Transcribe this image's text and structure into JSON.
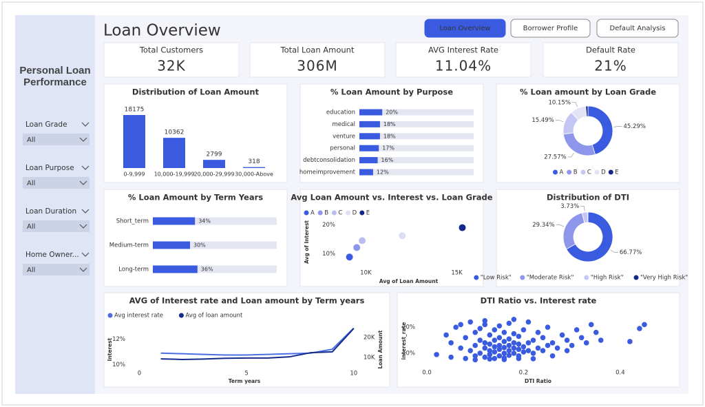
{
  "header": {
    "title": "Loan Overview",
    "tabs": [
      "Loan Overview",
      "Borrower Profile",
      "Default Analysis"
    ]
  },
  "sidebar": {
    "title": "Personal Loan Performance",
    "filters": [
      {
        "label": "Loan Grade",
        "value": "All"
      },
      {
        "label": "Loan Purpose",
        "value": "All"
      },
      {
        "label": "Loan Duration",
        "value": "All"
      },
      {
        "label": "Home Owner...",
        "value": "All"
      }
    ]
  },
  "kpis": [
    {
      "label": "Total Customers",
      "value": "32K"
    },
    {
      "label": "Total Loan Amount",
      "value": "306M"
    },
    {
      "label": "AVG Interest Rate",
      "value": "11.04%"
    },
    {
      "label": "Default Rate",
      "value": "21%"
    }
  ],
  "chart_data": [
    {
      "type": "bar",
      "title": "Distribution of Loan Amount",
      "categories": [
        "0-9,999",
        "10,000-19,999",
        "20,000-29,999",
        "30,000-Above"
      ],
      "values": [
        18175,
        10362,
        2799,
        318
      ],
      "color": "#3a5be0"
    },
    {
      "type": "barh",
      "title": "% Loan Amount by Purpose",
      "categories": [
        "education",
        "medical",
        "venture",
        "personal",
        "debtconsolidation",
        "homeimprovement"
      ],
      "values": [
        20,
        18,
        18,
        17,
        16,
        12
      ],
      "value_labels": [
        "20%",
        "18%",
        "18%",
        "17%",
        "16%",
        "12%"
      ],
      "xlim": [
        0,
        100
      ],
      "color": "#3a5be0"
    },
    {
      "type": "donut",
      "title": "% Loan amount by Loan Grade",
      "categories": [
        "A",
        "B",
        "C",
        "D",
        "E"
      ],
      "values": [
        45.29,
        27.57,
        15.49,
        10.15,
        1.5
      ],
      "value_labels": [
        "45.29%",
        "27.57%",
        "15.49%",
        "10.15%",
        null
      ],
      "colors": [
        "#3a5be0",
        "#8d96ea",
        "#c4c7f3",
        "#e2e3f5",
        "#14288a"
      ]
    },
    {
      "type": "barh",
      "title": "% Loan Amount by Term Years",
      "categories": [
        "Short_term",
        "Medium-term",
        "Long-term"
      ],
      "values": [
        34,
        30,
        36
      ],
      "value_labels": [
        "34%",
        "30%",
        "36%"
      ],
      "xlim": [
        0,
        100
      ],
      "color": "#3a5be0"
    },
    {
      "type": "scatter",
      "title": "Avg Loan Amount vs. Interest vs. Loan Grade",
      "xlabel": "Avg of Loan Amount",
      "ylabel": "Avg of Interest",
      "series": [
        {
          "name": "A",
          "color": "#3a5be0",
          "x": [
            9100
          ],
          "values": [
            8.8
          ]
        },
        {
          "name": "B",
          "color": "#8d96ea",
          "x": [
            9500
          ],
          "values": [
            12.1
          ]
        },
        {
          "name": "C",
          "color": "#b9bdf0",
          "x": [
            9800
          ],
          "values": [
            14.5
          ]
        },
        {
          "name": "D",
          "color": "#dcdef3",
          "x": [
            12000
          ],
          "values": [
            16.2
          ]
        },
        {
          "name": "E",
          "color": "#14288a",
          "x": [
            15300
          ],
          "values": [
            19
          ]
        }
      ],
      "xlim": [
        8700,
        16000
      ],
      "xticks": [
        {
          "value": 10000,
          "label": "10K"
        },
        {
          "value": 15000,
          "label": "15K"
        }
      ],
      "ylim": [
        6,
        22
      ],
      "yticks": [
        {
          "value": 10,
          "label": "10%"
        },
        {
          "value": 20,
          "label": "20%"
        }
      ]
    },
    {
      "type": "donut",
      "title": "Distribution of DTI",
      "categories": [
        "\"Low Risk\"",
        "\"Moderate Risk\"",
        "\"High Risk\"",
        "\"Very High Risk\""
      ],
      "values": [
        66.77,
        29.34,
        3.73,
        0.16
      ],
      "value_labels": [
        "66.77%",
        "29.34%",
        "3.73%",
        null
      ],
      "colors": [
        "#3a5be0",
        "#8d96ea",
        "#c4c7f3",
        "#14288a"
      ]
    },
    {
      "type": "line",
      "title": "AVG of Interest rate and Loan amount by Term years",
      "xlabel": "Term years",
      "ylabel": "Interest",
      "y2label": "Loan Amount",
      "x": [
        1,
        2,
        3,
        4,
        5,
        6,
        7,
        8,
        9,
        10
      ],
      "series": [
        {
          "name": "Avg interest rate",
          "color": "#4a6fe3",
          "values": [
            10.9,
            10.85,
            10.8,
            10.75,
            10.75,
            10.8,
            10.85,
            10.9,
            11.2,
            12.85
          ]
        },
        {
          "name": "Avg of loan amount",
          "color": "#142a8c",
          "axis": "y2",
          "values": [
            9300,
            9000,
            9200,
            9600,
            9700,
            9700,
            10300,
            12400,
            12800,
            24500
          ]
        }
      ],
      "xlim": [
        -0.4,
        10.2
      ],
      "xticks": [
        0,
        5,
        10
      ],
      "ylim": [
        9.7,
        13.2
      ],
      "yticks": [
        {
          "value": 10,
          "label": "10%"
        },
        {
          "value": 12,
          "label": "12%"
        }
      ],
      "y2lim": [
        4500,
        26900
      ],
      "y2ticks": [
        {
          "value": 10000,
          "label": "10K"
        },
        {
          "value": 20000,
          "label": "20K"
        }
      ]
    },
    {
      "type": "scatter",
      "title": "DTI Ratio vs. Interest rate",
      "xlabel": "DTI Ratio",
      "ylabel": "interest_rate",
      "color": "#3a5be0",
      "x": [
        0.02,
        0.04,
        0.05,
        0.06,
        0.07,
        0.08,
        0.08,
        0.09,
        0.09,
        0.1,
        0.1,
        0.1,
        0.11,
        0.11,
        0.11,
        0.12,
        0.12,
        0.12,
        0.12,
        0.13,
        0.13,
        0.13,
        0.13,
        0.14,
        0.14,
        0.14,
        0.14,
        0.14,
        0.15,
        0.15,
        0.15,
        0.15,
        0.15,
        0.16,
        0.16,
        0.16,
        0.16,
        0.16,
        0.17,
        0.17,
        0.17,
        0.17,
        0.17,
        0.18,
        0.18,
        0.18,
        0.18,
        0.19,
        0.19,
        0.19,
        0.19,
        0.2,
        0.2,
        0.2,
        0.21,
        0.21,
        0.21,
        0.22,
        0.22,
        0.23,
        0.23,
        0.24,
        0.24,
        0.25,
        0.25,
        0.26,
        0.27,
        0.28,
        0.29,
        0.3,
        0.31,
        0.32,
        0.33,
        0.34,
        0.35,
        0.36,
        0.05,
        0.07,
        0.1,
        0.13,
        0.16,
        0.19,
        0.22,
        0.26,
        0.42,
        0.45,
        0.44,
        0.29,
        0.12,
        0.18
      ],
      "values": [
        9.5,
        17,
        14,
        20,
        12,
        8,
        16,
        11,
        22,
        9,
        13,
        18,
        10,
        15,
        19.5,
        8.5,
        12,
        14,
        21,
        9.5,
        11,
        13.5,
        17,
        8,
        10.5,
        12.5,
        15,
        19,
        9,
        11.5,
        13,
        16,
        20.5,
        8.2,
        10,
        12.2,
        14.5,
        18,
        9.2,
        11,
        13,
        15.5,
        21.5,
        10,
        12,
        14,
        17.5,
        9,
        11.5,
        13.5,
        16.5,
        10.5,
        12.5,
        19,
        11,
        14,
        22,
        10,
        15,
        12,
        18,
        11,
        16,
        13,
        20,
        14,
        12,
        17,
        15,
        13,
        19,
        16,
        14,
        21,
        18,
        15,
        8.5,
        21,
        7.5,
        7.8,
        7.6,
        8,
        7.9,
        9,
        14.5,
        21,
        19.5,
        11,
        22.5,
        23
      ],
      "xlim": [
        -0.01,
        0.47
      ],
      "xticks": [
        {
          "value": 0,
          "label": "0.0"
        },
        0.2,
        0.4
      ],
      "ylim": [
        5.5,
        24
      ],
      "yticks": [
        {
          "value": 10,
          "label": "10%"
        },
        {
          "value": 20,
          "label": "20%"
        }
      ]
    }
  ]
}
